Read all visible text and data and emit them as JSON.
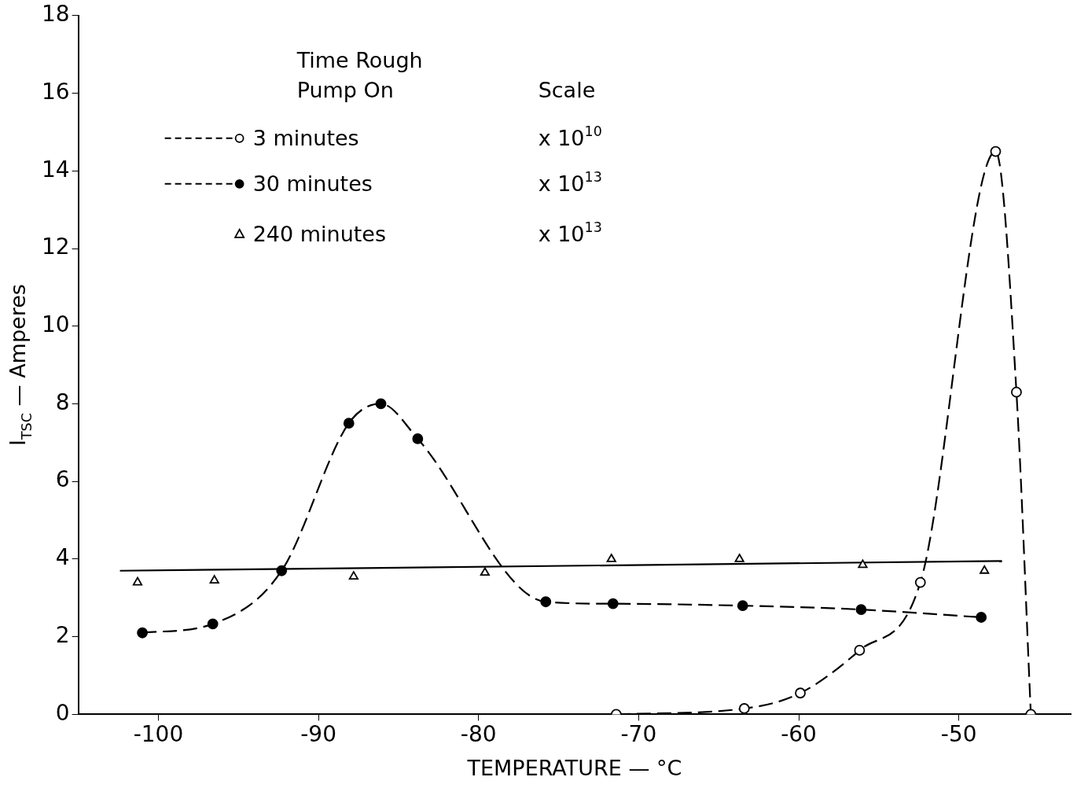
{
  "chart_data": {
    "type": "line",
    "xlabel": "TEMPERATURE — °C",
    "ylabel": "I$_{TSC}$ — Amperes",
    "legend_title": "Time Rough Pump On",
    "annotations": [
      "Scale",
      "x 10$^{10}$",
      "x 10$^{13}$",
      "x 10$^{13}$"
    ],
    "xlim": [
      -105,
      -43
    ],
    "xticks": [
      -100,
      -90,
      -80,
      -70,
      -60,
      -50
    ],
    "ylim": [
      0,
      18
    ],
    "yticks": [
      0,
      2,
      4,
      6,
      8,
      10,
      12,
      14,
      16,
      18
    ],
    "grid": false,
    "legend": "top left",
    "series": [
      {
        "name": "3 minutes",
        "color": "#000000",
        "type": "line",
        "marker": "circle",
        "line_style": "dashed",
        "x": [
          -71.4,
          -63.4,
          -59.9,
          -56.2,
          -52.4,
          -47.7,
          -46.4,
          -45.5
        ],
        "values": [
          0,
          0.15,
          0.55,
          1.65,
          3.4,
          14.5,
          8.3,
          0
        ]
      },
      {
        "name": "30 minutes",
        "color": "#000000",
        "type": "line",
        "marker": "circle",
        "line_style": "dashed",
        "x": [
          -101.0,
          -96.6,
          -92.3,
          -88.1,
          -86.1,
          -83.8,
          -75.8,
          -71.6,
          -63.5,
          -56.1,
          -48.6
        ],
        "values": [
          2.1,
          2.33,
          3.7,
          7.5,
          8.0,
          7.1,
          2.9,
          2.85,
          2.8,
          2.7,
          2.5
        ]
      },
      {
        "name": "240 minutes",
        "color": "#000000",
        "type": "scatter",
        "marker": "triangle",
        "x": [
          -101.3,
          -96.5,
          -87.8,
          -79.6,
          -71.7,
          -63.7,
          -56.0,
          -48.4
        ],
        "values": [
          3.4,
          3.45,
          3.55,
          3.65,
          4.0,
          4.0,
          3.85,
          3.7
        ]
      },
      {
        "color": "#000000",
        "type": "line",
        "marker": "none",
        "line_style": "solid",
        "x": [
          -102.4,
          -47.3
        ],
        "values": [
          3.7,
          3.95
        ]
      }
    ]
  }
}
